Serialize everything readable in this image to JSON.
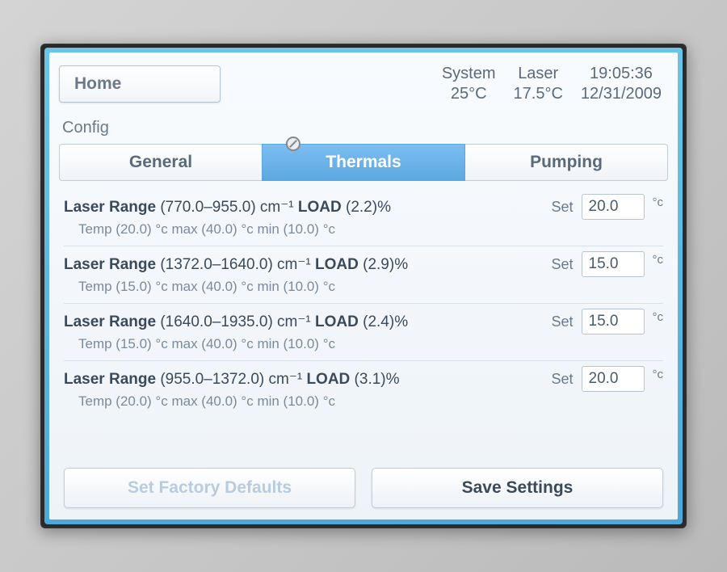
{
  "header": {
    "home_label": "Home",
    "status": {
      "system_label": "System",
      "system_value": "25°C",
      "laser_label": "Laser",
      "laser_value": "17.5°C",
      "time": "19:05:36",
      "date": "12/31/2009"
    }
  },
  "config": {
    "title": "Config",
    "tabs": {
      "general": "General",
      "thermals": "Thermals",
      "pumping": "Pumping"
    },
    "set_label": "Set",
    "unit_label": "°c",
    "rows": [
      {
        "range_lo": "770.0",
        "range_hi": "955.0",
        "range_unit": "cm⁻¹",
        "load": "2.2",
        "temp": "20.0",
        "max": "40.0",
        "min": "10.0",
        "set_value": "20.0"
      },
      {
        "range_lo": "1372.0",
        "range_hi": "1640.0",
        "range_unit": "cm⁻¹",
        "load": "2.9",
        "temp": "15.0",
        "max": "40.0",
        "min": "10.0",
        "set_value": "15.0"
      },
      {
        "range_lo": "1640.0",
        "range_hi": "1935.0",
        "range_unit": "cm⁻¹",
        "load": "2.4",
        "temp": "15.0",
        "max": "40.0",
        "min": "10.0",
        "set_value": "15.0"
      },
      {
        "range_lo": "955.0",
        "range_hi": "1372.0",
        "range_unit": "cm⁻¹",
        "load": "3.1",
        "temp": "20.0",
        "max": "40.0",
        "min": "10.0",
        "set_value": "20.0"
      }
    ],
    "buttons": {
      "factory_defaults": "Set Factory Defaults",
      "save_settings": "Save Settings"
    }
  },
  "colors": {
    "accent": "#5ba8e0",
    "bezel": "#2a2a2a",
    "screen_bg_top": "#f8fbfe",
    "screen_bg_bottom": "#eef3f8",
    "text_primary": "#4a5a6a",
    "text_secondary": "#7a8a9a",
    "border": "#b8c4cf",
    "disabled_text": "#b8cce0"
  }
}
